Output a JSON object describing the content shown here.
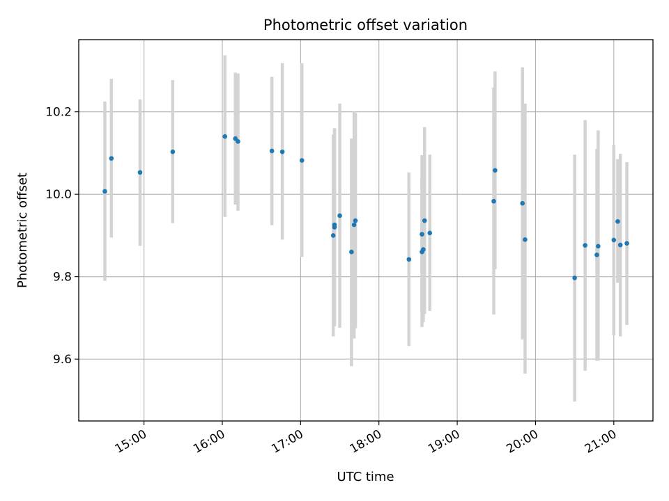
{
  "chart_data": {
    "type": "scatter",
    "title": "Photometric offset variation",
    "xlabel": "UTC time",
    "ylabel": "Photometric offset",
    "x_unit": "UTC time (HH:MM)",
    "xlim": [
      "14:10",
      "21:30"
    ],
    "ylim": [
      9.45,
      10.375
    ],
    "x_ticks": [
      "15:00",
      "16:00",
      "17:00",
      "18:00",
      "19:00",
      "20:00",
      "21:00"
    ],
    "y_ticks": [
      "9.6",
      "9.8",
      "10.0",
      "10.2"
    ],
    "grid": true,
    "legend": "none",
    "colors": {
      "marker": "#1f77b4",
      "errorbar": "#d3d3d3",
      "grid": "#b0b0b0"
    },
    "series": [
      {
        "points": [
          {
            "x": "14:30",
            "y": 10.007,
            "y_low": 9.79,
            "y_high": 10.225
          },
          {
            "x": "14:35",
            "y": 10.087,
            "y_low": 9.895,
            "y_high": 10.28
          },
          {
            "x": "14:57",
            "y": 10.053,
            "y_low": 9.875,
            "y_high": 10.23
          },
          {
            "x": "15:22",
            "y": 10.103,
            "y_low": 9.93,
            "y_high": 10.277
          },
          {
            "x": "16:02",
            "y": 10.14,
            "y_low": 9.945,
            "y_high": 10.337
          },
          {
            "x": "16:10",
            "y": 10.135,
            "y_low": 9.975,
            "y_high": 10.295
          },
          {
            "x": "16:12",
            "y": 10.128,
            "y_low": 9.96,
            "y_high": 10.293
          },
          {
            "x": "16:38",
            "y": 10.105,
            "y_low": 9.925,
            "y_high": 10.285
          },
          {
            "x": "16:46",
            "y": 10.103,
            "y_low": 9.89,
            "y_high": 10.318
          },
          {
            "x": "17:01",
            "y": 10.082,
            "y_low": 9.848,
            "y_high": 10.318
          },
          {
            "x": "17:25",
            "y": 9.9,
            "y_low": 9.655,
            "y_high": 10.145
          },
          {
            "x": "17:26",
            "y": 9.92,
            "y_low": 9.68,
            "y_high": 10.16
          },
          {
            "x": "17:26",
            "y": 9.926,
            "y_low": 9.69,
            "y_high": 10.16
          },
          {
            "x": "17:30",
            "y": 9.948,
            "y_low": 9.676,
            "y_high": 10.22
          },
          {
            "x": "17:39",
            "y": 9.86,
            "y_low": 9.583,
            "y_high": 10.135
          },
          {
            "x": "17:41",
            "y": 9.926,
            "y_low": 9.65,
            "y_high": 10.2
          },
          {
            "x": "17:42",
            "y": 9.936,
            "y_low": 9.675,
            "y_high": 10.197
          },
          {
            "x": "18:23",
            "y": 9.842,
            "y_low": 9.632,
            "y_high": 10.053
          },
          {
            "x": "18:33",
            "y": 9.903,
            "y_low": 9.71,
            "y_high": 10.095
          },
          {
            "x": "18:33",
            "y": 9.86,
            "y_low": 9.678,
            "y_high": 10.04
          },
          {
            "x": "18:34",
            "y": 9.866,
            "y_low": 9.69,
            "y_high": 10.04
          },
          {
            "x": "18:35",
            "y": 9.936,
            "y_low": 9.71,
            "y_high": 10.163
          },
          {
            "x": "18:39",
            "y": 9.906,
            "y_low": 9.717,
            "y_high": 10.096
          },
          {
            "x": "19:28",
            "y": 9.983,
            "y_low": 9.708,
            "y_high": 10.259
          },
          {
            "x": "19:29",
            "y": 10.058,
            "y_low": 9.818,
            "y_high": 10.298
          },
          {
            "x": "19:50",
            "y": 9.978,
            "y_low": 9.648,
            "y_high": 10.308
          },
          {
            "x": "19:52",
            "y": 9.89,
            "y_low": 9.565,
            "y_high": 10.22
          },
          {
            "x": "20:30",
            "y": 9.797,
            "y_low": 9.497,
            "y_high": 10.096
          },
          {
            "x": "20:38",
            "y": 9.876,
            "y_low": 9.572,
            "y_high": 10.18
          },
          {
            "x": "20:47",
            "y": 9.853,
            "y_low": 9.596,
            "y_high": 10.11
          },
          {
            "x": "20:48",
            "y": 9.874,
            "y_low": 9.596,
            "y_high": 10.155
          },
          {
            "x": "21:00",
            "y": 9.889,
            "y_low": 9.658,
            "y_high": 10.12
          },
          {
            "x": "21:03",
            "y": 9.934,
            "y_low": 9.785,
            "y_high": 10.085
          },
          {
            "x": "21:05",
            "y": 9.877,
            "y_low": 9.655,
            "y_high": 10.098
          },
          {
            "x": "21:10",
            "y": 9.881,
            "y_low": 9.683,
            "y_high": 10.078
          }
        ]
      }
    ]
  }
}
